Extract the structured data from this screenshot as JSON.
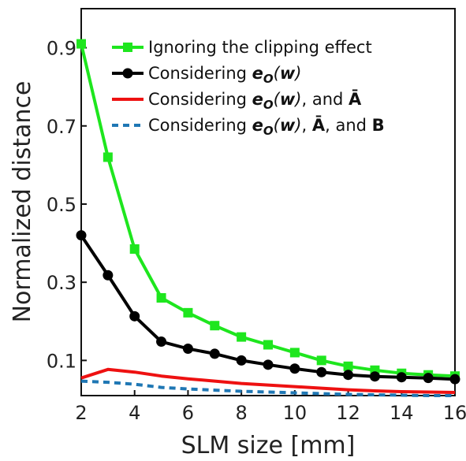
{
  "chart_data": {
    "type": "line",
    "xlabel": "SLM size [mm]",
    "ylabel": "Normalized distance",
    "xlim": [
      2,
      16
    ],
    "ylim": [
      0.01,
      1.0
    ],
    "xticks": [
      "2",
      "4",
      "6",
      "8",
      "10",
      "12",
      "14",
      "16"
    ],
    "yticks": [
      "0.1",
      "0.3",
      "0.5",
      "0.7",
      "0.9"
    ],
    "legend_position": "top-right",
    "grid": false,
    "x": [
      2,
      3,
      4,
      5,
      6,
      7,
      8,
      9,
      10,
      11,
      12,
      13,
      14,
      15,
      16
    ],
    "series": [
      {
        "name": "Ignoring the clipping effect",
        "color": "#1ee61e",
        "marker": "square",
        "dash": "solid",
        "values": [
          0.91,
          0.62,
          0.385,
          0.26,
          0.222,
          0.189,
          0.16,
          0.14,
          0.12,
          0.1,
          0.085,
          0.075,
          0.067,
          0.063,
          0.06
        ]
      },
      {
        "name": "Considering e_O(w)",
        "color": "#000000",
        "marker": "circle",
        "dash": "solid",
        "values": [
          0.42,
          0.318,
          0.213,
          0.148,
          0.13,
          0.117,
          0.1,
          0.089,
          0.079,
          0.07,
          0.063,
          0.059,
          0.057,
          0.055,
          0.052
        ]
      },
      {
        "name": "Considering e_O(w), and Ā",
        "color": "#ee1111",
        "marker": "none",
        "dash": "solid",
        "values": [
          0.055,
          0.077,
          0.07,
          0.06,
          0.053,
          0.047,
          0.041,
          0.037,
          0.033,
          0.029,
          0.025,
          0.022,
          0.02,
          0.019,
          0.018
        ]
      },
      {
        "name": "Considering e_O(w), Ā, and B",
        "color": "#1f77b4",
        "marker": "none",
        "dash": "dashed",
        "values": [
          0.047,
          0.044,
          0.039,
          0.031,
          0.027,
          0.024,
          0.021,
          0.019,
          0.017,
          0.015,
          0.013,
          0.012,
          0.011,
          0.01,
          0.01
        ]
      }
    ]
  },
  "legend": {
    "item1": {
      "text": "Ignoring the clipping effect"
    },
    "item2": {
      "prefix": "Considering ",
      "e": "e",
      "sub": "O",
      "paren_open": "(",
      "w": "w",
      "paren_close": ")"
    },
    "item3": {
      "prefix": "Considering ",
      "e": "e",
      "sub": "O",
      "paren_open": "(",
      "w": "w",
      "paren_close": ")",
      "mid": ", and ",
      "a": "Ā"
    },
    "item4": {
      "prefix": "Considering ",
      "e": "e",
      "sub": "O",
      "paren_open": "(",
      "w": "w",
      "paren_close": ")",
      "sep1": ", ",
      "a": "Ā",
      "mid": ", and ",
      "b": "B"
    }
  }
}
